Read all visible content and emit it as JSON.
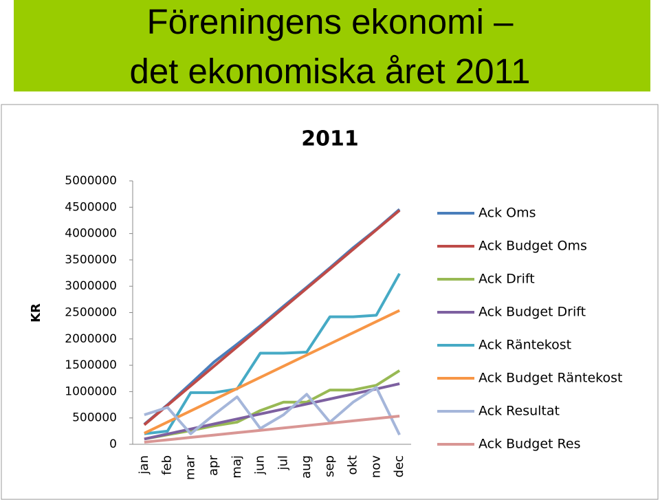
{
  "header": {
    "lines": [
      "Föreningens ekonomi –",
      "det ekonomiska året 2011"
    ]
  },
  "chart_data": {
    "type": "line",
    "title": "2011",
    "y_label": "KR",
    "categories": [
      "jan",
      "feb",
      "mar",
      "apr",
      "maj",
      "jun",
      "jul",
      "aug",
      "sep",
      "okt",
      "nov",
      "dec"
    ],
    "ylim": [
      0,
      5000000
    ],
    "yticks": [
      0,
      500000,
      1000000,
      1500000,
      2000000,
      2500000,
      3000000,
      3500000,
      4000000,
      4500000,
      5000000
    ],
    "grid": false,
    "legend": "right",
    "series": [
      {
        "name": "Ack Oms",
        "color": "#4a7ebb",
        "values": [
          380000,
          750000,
          1150000,
          1560000,
          1900000,
          2250000,
          2620000,
          2980000,
          3350000,
          3730000,
          4080000,
          4460000
        ]
      },
      {
        "name": "Ack Budget Oms",
        "color": "#be4b48",
        "values": [
          370000,
          740000,
          1110000,
          1480000,
          1850000,
          2220000,
          2590000,
          2960000,
          3330000,
          3700000,
          4070000,
          4440000
        ]
      },
      {
        "name": "Ack Drift",
        "color": "#98b954",
        "values": [
          100000,
          180000,
          260000,
          350000,
          420000,
          640000,
          800000,
          800000,
          1030000,
          1030000,
          1120000,
          1400000
        ]
      },
      {
        "name": "Ack Budget Drift",
        "color": "#7d60a0",
        "values": [
          100000,
          195000,
          290000,
          385000,
          480000,
          575000,
          670000,
          765000,
          860000,
          955000,
          1050000,
          1150000
        ]
      },
      {
        "name": "Ack Räntekost",
        "color": "#46aac5",
        "values": [
          200000,
          250000,
          980000,
          980000,
          1050000,
          1730000,
          1730000,
          1750000,
          2420000,
          2420000,
          2450000,
          3240000
        ]
      },
      {
        "name": "Ack Budget Räntekost",
        "color": "#f79646",
        "values": [
          210000,
          422000,
          634000,
          846000,
          1058000,
          1270000,
          1482000,
          1694000,
          1906000,
          2118000,
          2330000,
          2540000
        ]
      },
      {
        "name": "Ack Resultat",
        "color": "#a5b6da",
        "values": [
          560000,
          700000,
          200000,
          560000,
          900000,
          300000,
          560000,
          950000,
          420000,
          800000,
          1080000,
          180000
        ]
      },
      {
        "name": "Ack Budget Res",
        "color": "#d99694",
        "values": [
          40000,
          85000,
          130000,
          175000,
          220000,
          265000,
          310000,
          355000,
          400000,
          445000,
          490000,
          535000
        ]
      }
    ]
  }
}
